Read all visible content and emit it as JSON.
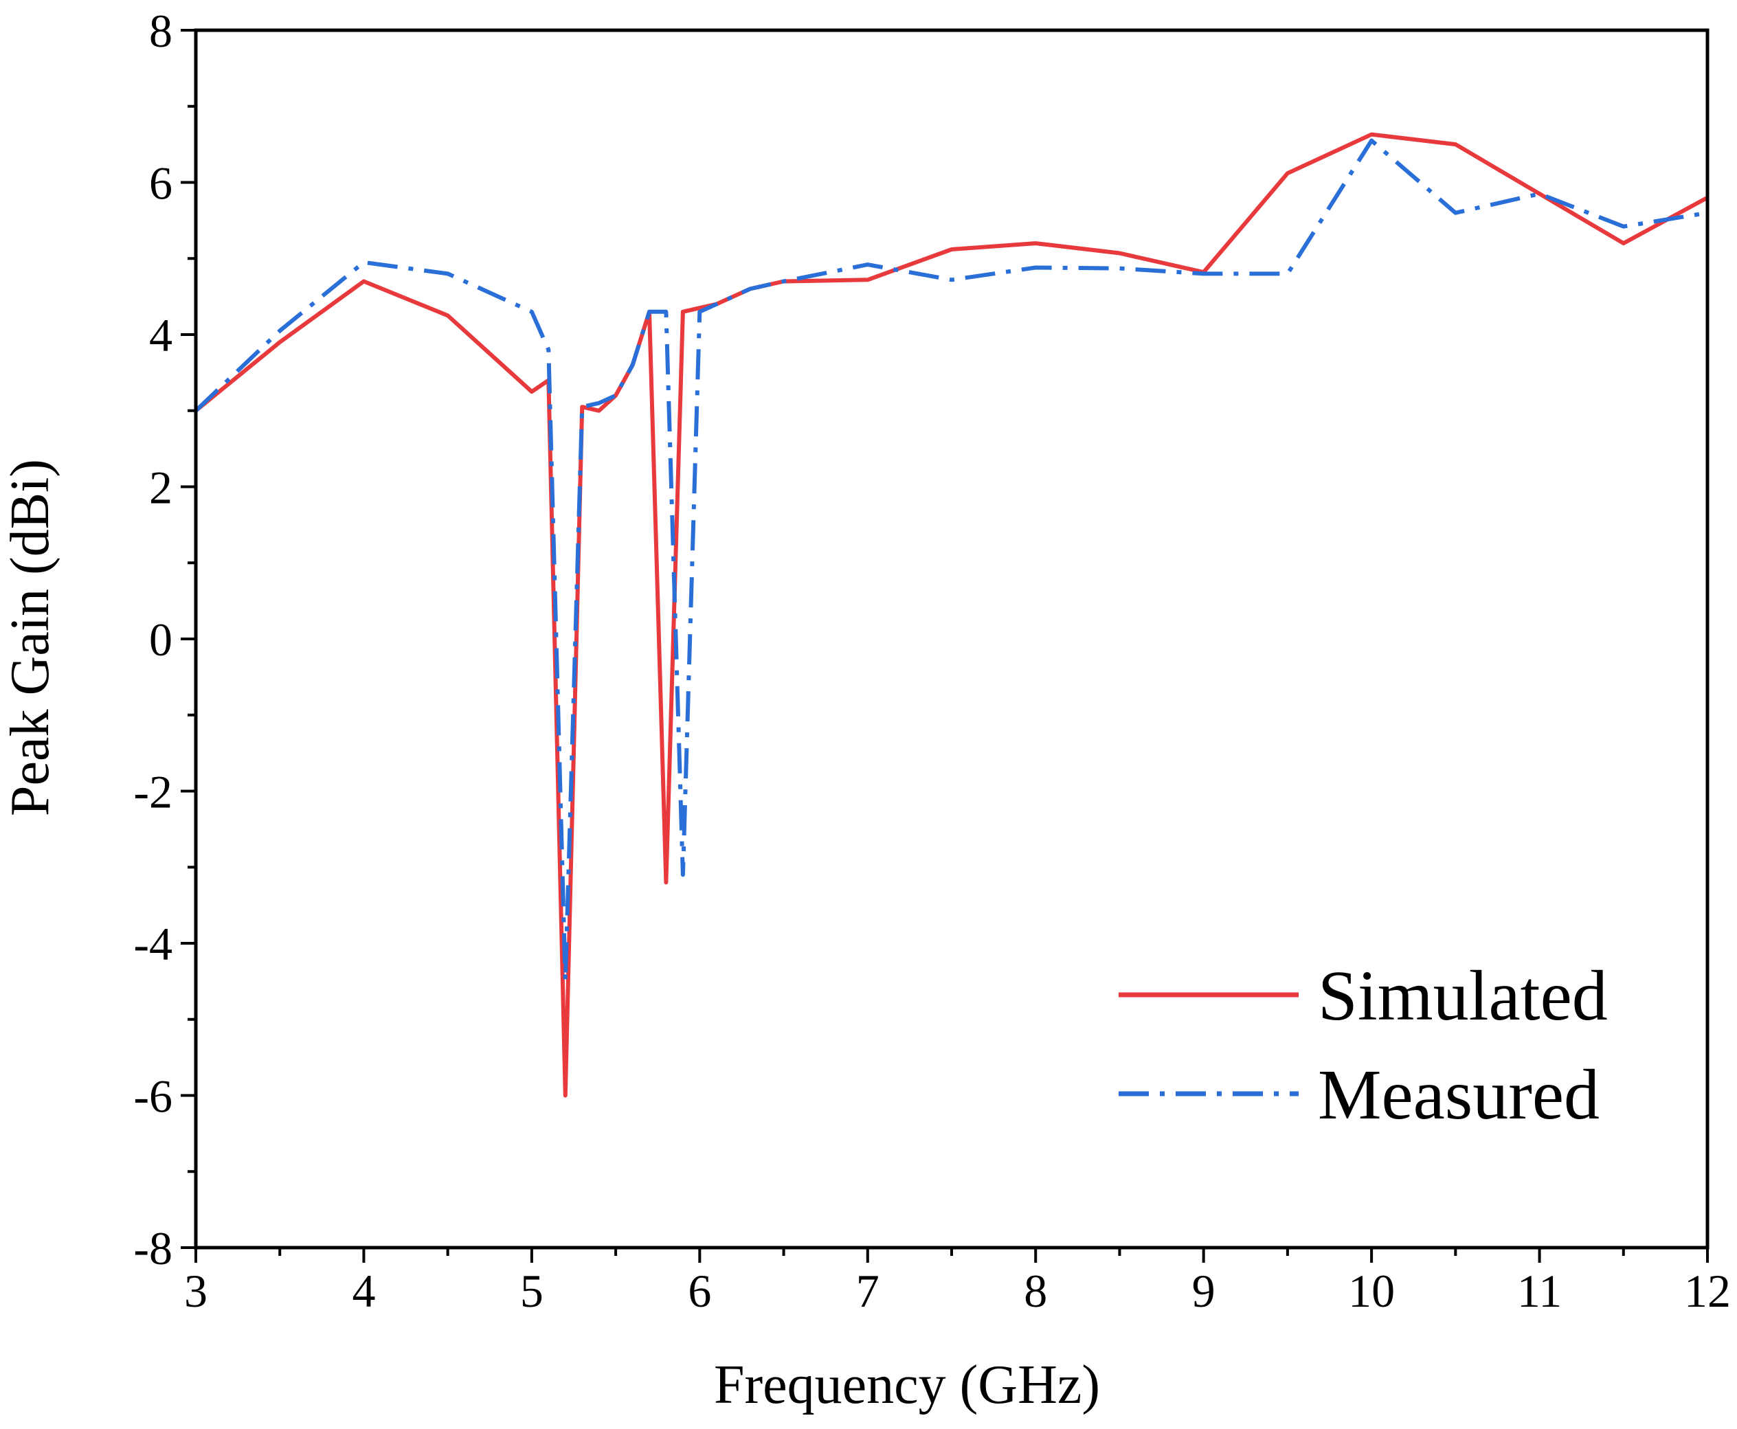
{
  "chart_data": {
    "type": "line",
    "title": "",
    "xlabel": "Frequency (GHz)",
    "ylabel": "Peak Gain (dBi)",
    "xlim": [
      3,
      12
    ],
    "ylim": [
      -8,
      8
    ],
    "xticks": [
      3,
      4,
      5,
      6,
      7,
      8,
      9,
      10,
      11,
      12
    ],
    "yticks": [
      -8,
      -6,
      -4,
      -2,
      0,
      2,
      4,
      6,
      8
    ],
    "xtick_labels": [
      "3",
      "4",
      "5",
      "6",
      "7",
      "8",
      "9",
      "10",
      "11",
      "12"
    ],
    "ytick_labels": [
      "-8",
      "-6",
      "-4",
      "-2",
      "0",
      "2",
      "4",
      "6",
      "8"
    ],
    "grid": false,
    "legend_position": "bottom-right",
    "series": [
      {
        "name": "Simulated",
        "color": "#e8393d",
        "style": "solid",
        "x": [
          3.0,
          3.5,
          4.0,
          4.5,
          5.0,
          5.1,
          5.2,
          5.3,
          5.4,
          5.5,
          5.6,
          5.7,
          5.8,
          5.9,
          6.0,
          6.1,
          6.3,
          6.5,
          7.0,
          7.5,
          8.0,
          8.5,
          9.0,
          9.5,
          10.0,
          10.5,
          11.0,
          11.5,
          12.0
        ],
        "y": [
          3.0,
          3.9,
          4.7,
          4.25,
          3.25,
          3.4,
          -6.0,
          3.05,
          3.0,
          3.2,
          3.6,
          4.3,
          -3.2,
          4.3,
          4.35,
          4.4,
          4.6,
          4.7,
          4.72,
          5.12,
          5.2,
          5.07,
          4.82,
          6.12,
          6.63,
          6.5,
          5.85,
          5.2,
          5.8
        ]
      },
      {
        "name": "Measured",
        "color": "#2a6fd8",
        "style": "dashdot",
        "x": [
          3.0,
          3.5,
          4.0,
          4.5,
          5.0,
          5.1,
          5.2,
          5.3,
          5.4,
          5.5,
          5.6,
          5.7,
          5.8,
          5.9,
          6.0,
          6.1,
          6.3,
          6.5,
          7.0,
          7.5,
          8.0,
          8.5,
          9.0,
          9.5,
          10.0,
          10.5,
          11.0,
          11.5,
          12.0
        ],
        "y": [
          3.0,
          4.05,
          4.95,
          4.8,
          4.3,
          3.8,
          -4.5,
          3.05,
          3.1,
          3.2,
          3.6,
          4.3,
          4.3,
          -3.1,
          4.3,
          4.4,
          4.6,
          4.7,
          4.92,
          4.72,
          4.88,
          4.87,
          4.8,
          4.8,
          6.55,
          5.6,
          5.85,
          5.42,
          5.6
        ]
      }
    ]
  }
}
